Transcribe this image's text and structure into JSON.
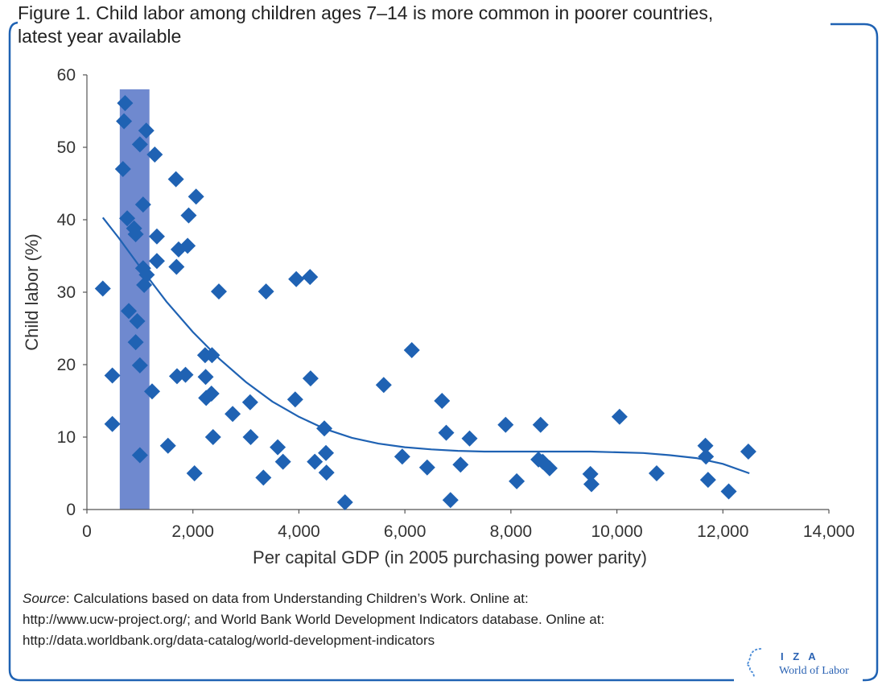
{
  "figure": {
    "title_line1": "Figure 1. Child labor among children ages 7–14 is more common in poorer countries,",
    "title_line2": "latest year available"
  },
  "source": {
    "label": "Source",
    "line1_rest": ": Calculations based on data from Understanding Children’s Work. Online at:",
    "line2": "http://www.ucw-project.org/; and World Bank World Development Indicators database. Online at:",
    "line3": "http://data.worldbank.org/data-catalog/world-development-indicators"
  },
  "logo": {
    "top": "I Z A",
    "bottom": "World of Labor"
  },
  "colors": {
    "accent": "#1f62b3",
    "marker": "#1f62b3",
    "band": "#5b79c8",
    "frame": "#1f62b3"
  },
  "chart_data": {
    "type": "scatter",
    "xlabel": "Per capital GDP (in 2005 purchasing power parity)",
    "ylabel": "Child labor (%)",
    "xlim": [
      0,
      14000
    ],
    "ylim": [
      0,
      60
    ],
    "xticks": [
      0,
      2000,
      4000,
      6000,
      8000,
      10000,
      12000,
      14000
    ],
    "xtick_labels": [
      "0",
      "2,000",
      "4,000",
      "6,000",
      "8,000",
      "10,000",
      "12,000",
      "14,000"
    ],
    "yticks": [
      0,
      10,
      20,
      30,
      40,
      50,
      60
    ],
    "ytick_labels": [
      "0",
      "10",
      "20",
      "30",
      "40",
      "50",
      "60"
    ],
    "grid": false,
    "highlight_band": {
      "x_from": 620,
      "x_to": 1180,
      "y_from": 0,
      "y_to": 58
    },
    "points": [
      [
        300,
        30.5
      ],
      [
        480,
        18.5
      ],
      [
        480,
        11.8
      ],
      [
        680,
        47
      ],
      [
        700,
        53.6
      ],
      [
        720,
        56.1
      ],
      [
        760,
        40.2
      ],
      [
        790,
        27.4
      ],
      [
        890,
        38.8
      ],
      [
        920,
        38
      ],
      [
        920,
        23.1
      ],
      [
        950,
        26
      ],
      [
        1000,
        50.4
      ],
      [
        1000,
        19.9
      ],
      [
        1000,
        7.5
      ],
      [
        1060,
        33.3
      ],
      [
        1060,
        42.1
      ],
      [
        1080,
        31
      ],
      [
        1120,
        52.3
      ],
      [
        1130,
        32.4
      ],
      [
        1230,
        16.3
      ],
      [
        1280,
        49
      ],
      [
        1320,
        34.3
      ],
      [
        1320,
        37.7
      ],
      [
        1530,
        8.8
      ],
      [
        1680,
        45.6
      ],
      [
        1690,
        33.5
      ],
      [
        1700,
        18.4
      ],
      [
        1730,
        35.9
      ],
      [
        1860,
        18.6
      ],
      [
        1900,
        36.4
      ],
      [
        1920,
        40.6
      ],
      [
        2030,
        5
      ],
      [
        2060,
        43.2
      ],
      [
        2230,
        21.3
      ],
      [
        2240,
        18.3
      ],
      [
        2250,
        15.4
      ],
      [
        2350,
        16
      ],
      [
        2360,
        21.3
      ],
      [
        2380,
        10
      ],
      [
        2490,
        30.1
      ],
      [
        2750,
        13.2
      ],
      [
        3080,
        14.8
      ],
      [
        3090,
        10
      ],
      [
        3330,
        4.4
      ],
      [
        3380,
        30.1
      ],
      [
        3600,
        8.6
      ],
      [
        3700,
        6.6
      ],
      [
        3930,
        15.2
      ],
      [
        3950,
        31.8
      ],
      [
        4210,
        32.1
      ],
      [
        4220,
        18.1
      ],
      [
        4300,
        6.6
      ],
      [
        4480,
        11.2
      ],
      [
        4510,
        7.8
      ],
      [
        4520,
        5.1
      ],
      [
        4870,
        1
      ],
      [
        5600,
        17.2
      ],
      [
        5950,
        7.3
      ],
      [
        6130,
        22
      ],
      [
        6420,
        5.8
      ],
      [
        6700,
        15
      ],
      [
        6780,
        10.6
      ],
      [
        6860,
        1.3
      ],
      [
        7050,
        6.2
      ],
      [
        7220,
        9.8
      ],
      [
        7900,
        11.7
      ],
      [
        8110,
        3.9
      ],
      [
        8520,
        6.9
      ],
      [
        8560,
        11.7
      ],
      [
        8600,
        6.6
      ],
      [
        8730,
        5.7
      ],
      [
        9500,
        4.9
      ],
      [
        9520,
        3.5
      ],
      [
        10050,
        12.8
      ],
      [
        10750,
        5
      ],
      [
        11670,
        8.8
      ],
      [
        11680,
        7.3
      ],
      [
        11720,
        4.1
      ],
      [
        12110,
        2.5
      ],
      [
        12480,
        8
      ]
    ],
    "trend_line": [
      [
        300,
        40.3
      ],
      [
        600,
        37.5
      ],
      [
        1000,
        33.5
      ],
      [
        1500,
        28.7
      ],
      [
        2000,
        24.5
      ],
      [
        2500,
        20.8
      ],
      [
        3000,
        17.6
      ],
      [
        3500,
        14.9
      ],
      [
        4000,
        12.8
      ],
      [
        4500,
        11.1
      ],
      [
        5000,
        9.9
      ],
      [
        5500,
        9.1
      ],
      [
        6000,
        8.6
      ],
      [
        6500,
        8.3
      ],
      [
        7000,
        8.1
      ],
      [
        7500,
        8.0
      ],
      [
        8000,
        8.0
      ],
      [
        8500,
        8.0
      ],
      [
        9000,
        8.0
      ],
      [
        9500,
        8.0
      ],
      [
        10000,
        7.9
      ],
      [
        10500,
        7.8
      ],
      [
        11000,
        7.5
      ],
      [
        11500,
        7.1
      ],
      [
        12000,
        6.3
      ],
      [
        12500,
        5.0
      ]
    ]
  }
}
